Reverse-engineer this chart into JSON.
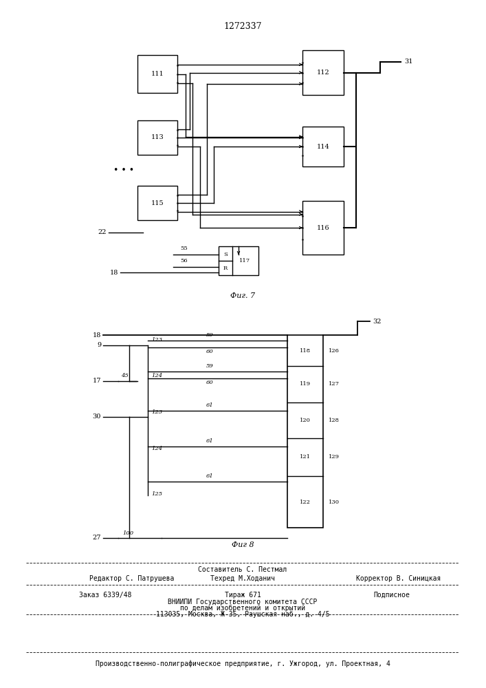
{
  "title": "1272337",
  "fig7_label": "Фиг. 7",
  "fig8_label": "Фиг 8",
  "footer_line1": "Составитель С. Пестмал",
  "footer_line2a": "Редактор С. Патрушева",
  "footer_line2b": "Техред М.Ходанич",
  "footer_line2c": "Корректор В. Синицкая",
  "footer_line3a": "Заказ 6339/48",
  "footer_line3b": "Тираж 671",
  "footer_line3c": "Подписное",
  "footer_line4": "ВНИИПИ Государственного комитета СССР",
  "footer_line5": "по делам изобретений и открытий",
  "footer_line6": "113035, Москва, Ж-35, Раушская наб., д. 4/5",
  "footer_line7": "Производственно-полиграфическое предприятие, г. Ужгород, ул. Проектная, 4"
}
